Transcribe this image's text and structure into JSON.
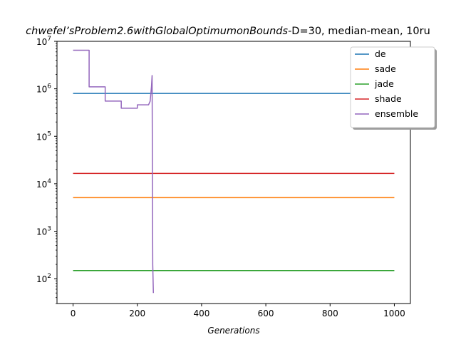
{
  "chart_data": {
    "type": "line",
    "title_italic": "chwefel’sProblem2.6withGlobalOptimumonBounds",
    "title_rest": "-D=30, median-mean, 10ru",
    "xlabel": "Generations",
    "ylabel": "",
    "xlim": [
      -50,
      1050
    ],
    "ylim": [
      30,
      10000000
    ],
    "yscale": "log",
    "grid": false,
    "legend_position": "top-right",
    "x_ticks": [
      0,
      200,
      400,
      600,
      800,
      1000
    ],
    "x_tick_labels": [
      "0",
      "200",
      "400",
      "600",
      "800",
      "1000"
    ],
    "y_ticks": [
      100,
      1000,
      10000,
      100000,
      1000000,
      10000000
    ],
    "y_tick_exponents": [
      "2",
      "3",
      "4",
      "5",
      "6",
      "7"
    ],
    "series": [
      {
        "name": "de",
        "color": "#1f77b4",
        "x": [
          0,
          1000
        ],
        "y": [
          800000,
          800000
        ]
      },
      {
        "name": "sade",
        "color": "#ff7f0e",
        "x": [
          0,
          1000
        ],
        "y": [
          5100,
          5100
        ]
      },
      {
        "name": "jade",
        "color": "#2ca02c",
        "x": [
          0,
          1000
        ],
        "y": [
          148,
          148
        ]
      },
      {
        "name": "shade",
        "color": "#d62728",
        "x": [
          0,
          1000
        ],
        "y": [
          16500,
          16500
        ]
      },
      {
        "name": "ensemble",
        "color": "#9467bd",
        "x": [
          0,
          50,
          50,
          100,
          100,
          150,
          150,
          200,
          200,
          235,
          240,
          244,
          246,
          248,
          250
        ],
        "y": [
          6500000,
          6500000,
          1100000,
          1100000,
          550000,
          550000,
          390000,
          390000,
          460000,
          460000,
          550000,
          1100000,
          1900000,
          200,
          50
        ]
      }
    ]
  }
}
